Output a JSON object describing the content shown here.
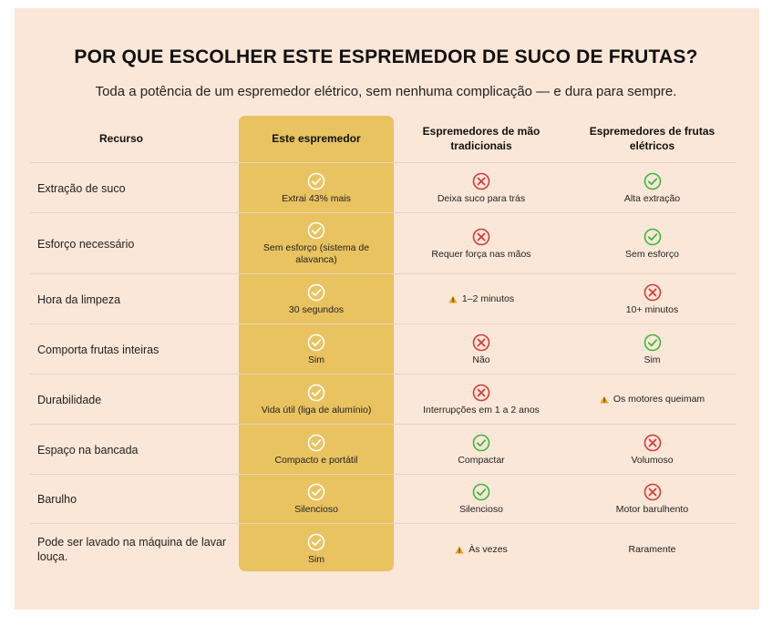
{
  "title": "POR QUE ESCOLHER ESTE ESPREMEDOR DE SUCO DE FRUTAS?",
  "subtitle": "Toda a potência de um espremedor elétrico, sem nenhuma complicação — e dura para sempre.",
  "colors": {
    "background": "#fbe7d8",
    "highlight": "#e8c360",
    "check_green": "#3db83d",
    "cross_red": "#d63a3a",
    "warning": "#e8a317"
  },
  "headers": {
    "feature": "Recurso",
    "this": "Este espremedor",
    "manual": "Espremedores de mão tradicionais",
    "electric": "Espremedores de frutas elétricos"
  },
  "rows": [
    {
      "feature": "Extração de suco",
      "this": {
        "icon": "check-white-icon",
        "text": "Extrai 43% mais"
      },
      "manual": {
        "icon": "cross-icon",
        "text": "Deixa suco para trás"
      },
      "electric": {
        "icon": "check-icon",
        "text": "Alta extração"
      }
    },
    {
      "feature": "Esforço necessário",
      "this": {
        "icon": "check-white-icon",
        "text": "Sem esforço (sistema de alavanca)"
      },
      "manual": {
        "icon": "cross-icon",
        "text": "Requer força nas mãos"
      },
      "electric": {
        "icon": "check-icon",
        "text": "Sem esforço"
      }
    },
    {
      "feature": "Hora da limpeza",
      "this": {
        "icon": "check-white-icon",
        "text": "30 segundos"
      },
      "manual": {
        "icon": "warning-icon",
        "text": "1–2 minutos"
      },
      "electric": {
        "icon": "cross-icon",
        "text": "10+ minutos"
      }
    },
    {
      "feature": "Comporta frutas inteiras",
      "this": {
        "icon": "check-white-icon",
        "text": "Sim"
      },
      "manual": {
        "icon": "cross-icon",
        "text": "Não"
      },
      "electric": {
        "icon": "check-icon",
        "text": "Sim"
      }
    },
    {
      "feature": "Durabilidade",
      "this": {
        "icon": "check-white-icon",
        "text": "Vida útil (liga de alumínio)"
      },
      "manual": {
        "icon": "cross-icon",
        "text": "Interrupções em 1 a 2 anos"
      },
      "electric": {
        "icon": "warning-icon",
        "text": "Os motores queimam"
      }
    },
    {
      "feature": "Espaço na bancada",
      "this": {
        "icon": "check-white-icon",
        "text": "Compacto e portátil"
      },
      "manual": {
        "icon": "check-icon",
        "text": "Compactar"
      },
      "electric": {
        "icon": "cross-icon",
        "text": "Volumoso"
      }
    },
    {
      "feature": "Barulho",
      "this": {
        "icon": "check-white-icon",
        "text": "Silencioso"
      },
      "manual": {
        "icon": "check-icon",
        "text": "Silencioso"
      },
      "electric": {
        "icon": "cross-icon",
        "text": "Motor barulhento"
      }
    },
    {
      "feature": "Pode ser lavado na máquina de lavar louça.",
      "this": {
        "icon": "check-white-icon",
        "text": "Sim"
      },
      "manual": {
        "icon": "warning-icon",
        "text": "Às vezes"
      },
      "electric": {
        "icon": "none",
        "text": "Raramente"
      }
    }
  ]
}
